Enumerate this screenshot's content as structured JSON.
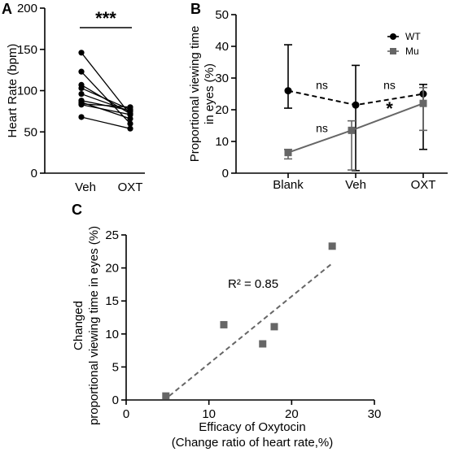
{
  "panels": {
    "a": {
      "letter": "A"
    },
    "b": {
      "letter": "B"
    },
    "c": {
      "letter": "C"
    }
  },
  "chart_data": [
    {
      "id": "A",
      "type": "line",
      "subtype": "paired-dot",
      "title": "",
      "ylabel": "Heart Rate (bpm)",
      "xlabel": "",
      "categories": [
        "Veh",
        "OXT"
      ],
      "ylim": [
        0,
        200
      ],
      "yticks": [
        0,
        50,
        100,
        150,
        200
      ],
      "pairs": [
        [
          146,
          71
        ],
        [
          123,
          60
        ],
        [
          107,
          72
        ],
        [
          103,
          77
        ],
        [
          96,
          75
        ],
        [
          88,
          76
        ],
        [
          86,
          66
        ],
        [
          84,
          80
        ],
        [
          83,
          71
        ],
        [
          68,
          54
        ]
      ],
      "annotation": "***",
      "colors": {
        "points": "#000000",
        "lines": "#000000"
      }
    },
    {
      "id": "B",
      "type": "line",
      "title": "",
      "ylabel": "Proportional viewing time in eyes (%)",
      "xlabel": "",
      "categories": [
        "Blank",
        "Veh",
        "OXT"
      ],
      "ylim": [
        0,
        50
      ],
      "yticks": [
        0,
        10,
        20,
        30,
        40,
        50
      ],
      "series": [
        {
          "name": "WT",
          "values": [
            26,
            21.5,
            25
          ],
          "err_low": [
            20.5,
            0.8,
            7.5
          ],
          "err_high": [
            40.5,
            34,
            28
          ],
          "color": "#000000",
          "style": "dashed",
          "marker": "circle"
        },
        {
          "name": "Mu",
          "values": [
            6.5,
            13.5,
            22
          ],
          "err_low": [
            4.5,
            1,
            13.5
          ],
          "err_high": [
            7.5,
            16.5,
            27
          ],
          "color": "#666666",
          "style": "solid",
          "marker": "square"
        }
      ],
      "legend_position": "top-right",
      "annotations": [
        {
          "text": "ns",
          "x": 0.5,
          "y": 26.5
        },
        {
          "text": "ns",
          "x": 1.5,
          "y": 26.5
        },
        {
          "text": "ns",
          "x": 0.5,
          "y": 13
        },
        {
          "text": "*",
          "x": 1.5,
          "y": 18.5
        }
      ]
    },
    {
      "id": "C",
      "type": "scatter",
      "title": "",
      "xlabel": "Efficacy of Oxytocin",
      "xlabel2": "(Change ratio of heart rate,%)",
      "ylabel": "Changed",
      "ylabel2": "proportional viewing time in eyes (%)",
      "xlim": [
        0,
        30
      ],
      "xticks": [
        0,
        10,
        20,
        30
      ],
      "ylim": [
        0,
        25
      ],
      "yticks": [
        0,
        5,
        10,
        15,
        20,
        25
      ],
      "points": [
        [
          4.8,
          0.6
        ],
        [
          11.8,
          11.4
        ],
        [
          16.5,
          8.5
        ],
        [
          17.9,
          11.1
        ],
        [
          24.9,
          23.3
        ]
      ],
      "regression": {
        "x": [
          5.2,
          25
        ],
        "y": [
          0.6,
          20.8
        ]
      },
      "r2_label": "R² = 0.85",
      "colors": {
        "points": "#666666",
        "line": "#666666"
      }
    }
  ]
}
